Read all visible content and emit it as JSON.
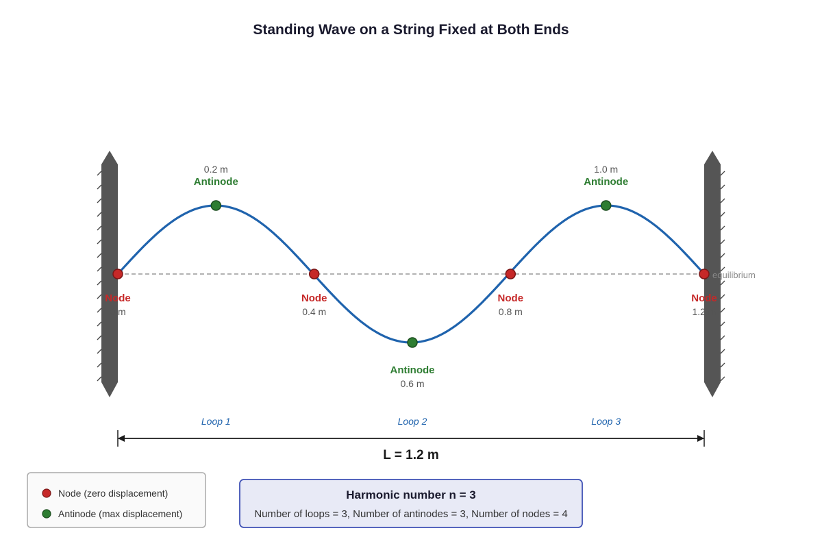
{
  "title": "Standing Wave on a String Fixed at Both Ends",
  "equilibrium_label": "equilibrium",
  "nodes": [
    {
      "label": "Node",
      "position": "0 m"
    },
    {
      "label": "Node",
      "position": "0.4 m"
    },
    {
      "label": "Node",
      "position": "0.8 m"
    },
    {
      "label": "Node",
      "position": "1.2 m"
    }
  ],
  "antinodes": [
    {
      "label": "Antinode",
      "position": "0.2 m"
    },
    {
      "label": "Antinode",
      "position": "0.6 m"
    },
    {
      "label": "Antinode",
      "position": "1.0 m"
    }
  ],
  "loops": [
    "Loop 1",
    "Loop 2",
    "Loop 3"
  ],
  "length_label": "L = 1.2 m",
  "legend": {
    "node": "Node (zero displacement)",
    "antinode": "Antinode (max displacement)"
  },
  "harmonic": {
    "title": "Harmonic number n = 3",
    "detail": "Number of loops = 3, Number of antinodes = 3, Number of nodes = 4"
  },
  "colors": {
    "wave": "#1f63ad",
    "node": "#c62828",
    "antinode": "#2e7d32",
    "wall": "#555555"
  }
}
